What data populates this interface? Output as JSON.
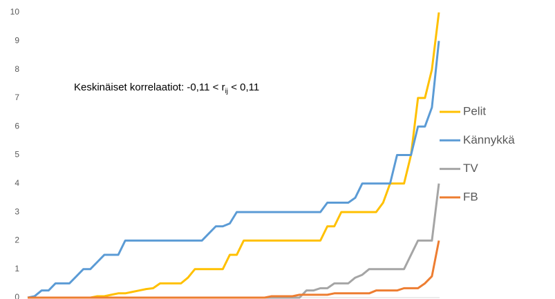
{
  "chart_data": {
    "type": "line",
    "annotation": {
      "text": "Keskinäiset korrelaatiot: -0,11 < r",
      "subscript": "ij",
      "tail": " < 0,11"
    },
    "categories": [
      null,
      null,
      null,
      null,
      null,
      null,
      null,
      null,
      null,
      null,
      null,
      null,
      null,
      null,
      null,
      null,
      null,
      null,
      null,
      null,
      null,
      null,
      null,
      null,
      null,
      null,
      null,
      null,
      null,
      null,
      null,
      null,
      null,
      null,
      null,
      null,
      null,
      null,
      null,
      null,
      null,
      null,
      null,
      null,
      null,
      null,
      null,
      null,
      null,
      null,
      null,
      null,
      null,
      null,
      null,
      null,
      null,
      null,
      null,
      null
    ],
    "series": [
      {
        "name": "Pelit",
        "color": "#ffc000",
        "values": [
          0,
          0,
          0,
          0,
          0,
          0,
          0,
          0,
          0,
          0,
          0.05,
          0.05,
          0.1,
          0.15,
          0.15,
          0.2,
          0.25,
          0.3,
          0.33,
          0.5,
          0.5,
          0.5,
          0.5,
          0.7,
          1,
          1,
          1,
          1,
          1,
          1.5,
          1.5,
          2,
          2,
          2,
          2,
          2,
          2,
          2,
          2,
          2,
          2,
          2,
          2,
          2.5,
          2.5,
          3,
          3,
          3,
          3,
          3,
          3,
          3.33,
          4,
          4,
          4,
          5,
          7,
          7,
          8,
          10
        ]
      },
      {
        "name": "Kännykkä",
        "color": "#5b9bd5",
        "values": [
          0,
          0.05,
          0.25,
          0.25,
          0.5,
          0.5,
          0.5,
          0.75,
          1,
          1,
          1.25,
          1.5,
          1.5,
          1.5,
          2,
          2,
          2,
          2,
          2,
          2,
          2,
          2,
          2,
          2,
          2,
          2,
          2.25,
          2.5,
          2.5,
          2.6,
          3,
          3,
          3,
          3,
          3,
          3,
          3,
          3,
          3,
          3,
          3,
          3,
          3,
          3.33,
          3.33,
          3.33,
          3.33,
          3.5,
          4,
          4,
          4,
          4,
          4,
          5,
          5,
          5,
          6,
          6,
          6.67,
          9
        ]
      },
      {
        "name": "TV",
        "color": "#a5a5a5",
        "values": [
          0,
          0,
          0,
          0,
          0,
          0,
          0,
          0,
          0,
          0,
          0,
          0,
          0,
          0,
          0,
          0,
          0,
          0,
          0,
          0,
          0,
          0,
          0,
          0,
          0,
          0,
          0,
          0,
          0,
          0,
          0,
          0,
          0,
          0,
          0,
          0,
          0,
          0,
          0,
          0,
          0.25,
          0.25,
          0.33,
          0.33,
          0.5,
          0.5,
          0.5,
          0.7,
          0.8,
          1,
          1,
          1,
          1,
          1,
          1,
          1.5,
          2,
          2,
          2,
          4
        ]
      },
      {
        "name": "FB",
        "color": "#ed7d31",
        "values": [
          0,
          0,
          0,
          0,
          0,
          0,
          0,
          0,
          0,
          0,
          0,
          0,
          0,
          0,
          0,
          0,
          0,
          0,
          0,
          0,
          0,
          0,
          0,
          0,
          0,
          0,
          0,
          0,
          0,
          0,
          0,
          0,
          0,
          0,
          0,
          0.05,
          0.05,
          0.05,
          0.05,
          0.1,
          0.1,
          0.1,
          0.1,
          0.1,
          0.15,
          0.15,
          0.15,
          0.15,
          0.15,
          0.15,
          0.25,
          0.25,
          0.25,
          0.25,
          0.33,
          0.33,
          0.33,
          0.5,
          0.75,
          2
        ]
      }
    ],
    "ylim": [
      0,
      10
    ],
    "yticks": [
      0,
      1,
      2,
      3,
      4,
      5,
      6,
      7,
      8,
      9,
      10
    ],
    "grid": false,
    "legend": "right"
  }
}
